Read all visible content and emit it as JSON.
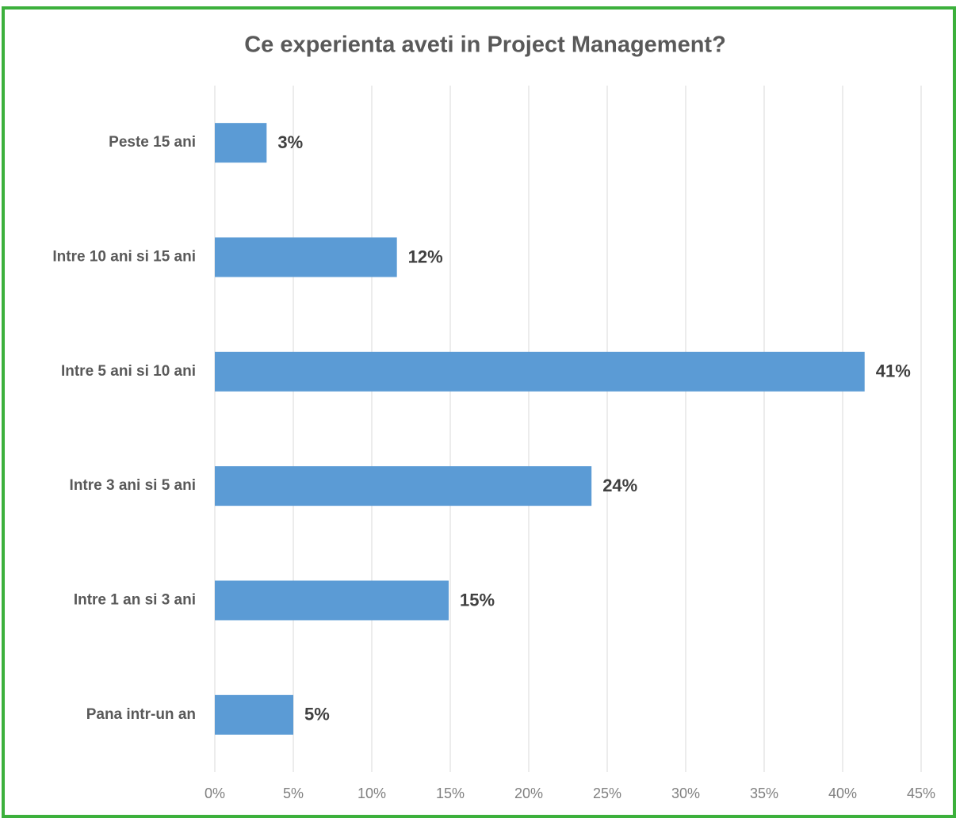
{
  "chart_data": {
    "type": "bar",
    "orientation": "horizontal",
    "title": "Ce experienta aveti in Project Management?",
    "categories": [
      "Peste 15 ani",
      "Intre 10 ani si 15 ani",
      "Intre 5 ani si 10 ani",
      "Intre 3 ani si 5 ani",
      "Intre 1 an si 3 ani",
      "Pana intr-un an"
    ],
    "values": [
      3.3,
      11.6,
      41.4,
      24,
      14.9,
      5
    ],
    "value_labels": [
      "3%",
      "12%",
      "41%",
      "24%",
      "15%",
      "5%"
    ],
    "color": "#5b9bd5",
    "xlim": [
      0,
      45
    ],
    "xticks": [
      {
        "value": 0,
        "label": "0%"
      },
      {
        "value": 5,
        "label": "5%"
      },
      {
        "value": 10,
        "label": "10%"
      },
      {
        "value": 15,
        "label": "15%"
      },
      {
        "value": 20,
        "label": "20%"
      },
      {
        "value": 25,
        "label": "25%"
      },
      {
        "value": 30,
        "label": "30%"
      },
      {
        "value": 35,
        "label": "35%"
      },
      {
        "value": 40,
        "label": "40%"
      },
      {
        "value": 45,
        "label": "45%"
      }
    ],
    "grid": true
  }
}
